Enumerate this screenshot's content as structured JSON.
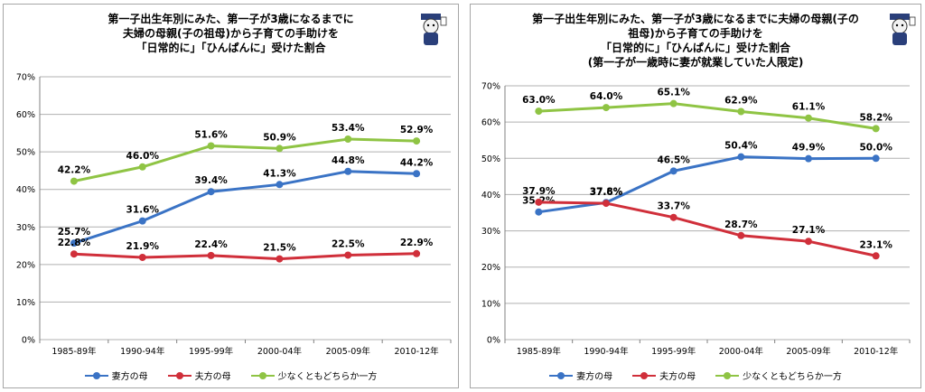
{
  "colors": {
    "wife_mother": "#3a73c5",
    "husband_mother": "#d02f3a",
    "either": "#8fc444",
    "grid": "#b0b0b0",
    "axis_text": "#000000"
  },
  "chart_data": [
    {
      "type": "line",
      "title_lines": [
        "第一子出生年別にみた、第一子が3歳になるまでに",
        "夫婦の母親(子の祖母)から子育ての手助けを",
        "「日常的に」「ひんぱんに」受けた割合"
      ],
      "categories": [
        "1985-89年",
        "1990-94年",
        "1995-99年",
        "2000-04年",
        "2005-09年",
        "2010-12年"
      ],
      "ylim": [
        0,
        70
      ],
      "yticks": [
        "0%",
        "10%",
        "20%",
        "30%",
        "40%",
        "50%",
        "60%",
        "70%"
      ],
      "grid": true,
      "legend_position": "bottom",
      "series": [
        {
          "key": "wife_mother",
          "name": "妻方の母",
          "values": [
            25.7,
            31.6,
            39.4,
            41.3,
            44.8,
            44.2
          ],
          "labels": [
            "25.7%",
            "31.6%",
            "39.4%",
            "41.3%",
            "44.8%",
            "44.2%"
          ]
        },
        {
          "key": "husband_mother",
          "name": "夫方の母",
          "values": [
            22.8,
            21.9,
            22.4,
            21.5,
            22.5,
            22.9
          ],
          "labels": [
            "22.8%",
            "21.9%",
            "22.4%",
            "21.5%",
            "22.5%",
            "22.9%"
          ]
        },
        {
          "key": "either",
          "name": "少なくともどちらか一方",
          "values": [
            42.2,
            46.0,
            51.6,
            50.9,
            53.4,
            52.9
          ],
          "labels": [
            "42.2%",
            "46.0%",
            "51.6%",
            "50.9%",
            "53.4%",
            "52.9%"
          ]
        }
      ]
    },
    {
      "type": "line",
      "title_lines": [
        "第一子出生年別にみた、第一子が3歳になるまでに夫婦の母親(子の",
        "祖母)から子育ての手助けを",
        "「日常的に」「ひんぱんに」受けた割合",
        "(第一子が一歳時に妻が就業していた人限定)"
      ],
      "categories": [
        "1985-89年",
        "1990-94年",
        "1995-99年",
        "2000-04年",
        "2005-09年",
        "2010-12年"
      ],
      "ylim": [
        0,
        70
      ],
      "yticks": [
        "0%",
        "10%",
        "20%",
        "30%",
        "40%",
        "50%",
        "60%",
        "70%"
      ],
      "grid": true,
      "legend_position": "bottom",
      "series": [
        {
          "key": "wife_mother",
          "name": "妻方の母",
          "values": [
            35.2,
            37.8,
            46.5,
            50.4,
            49.9,
            50.0
          ],
          "labels": [
            "35.2%",
            "37.8%",
            "46.5%",
            "50.4%",
            "49.9%",
            "50.0%"
          ]
        },
        {
          "key": "husband_mother",
          "name": "夫方の母",
          "values": [
            37.9,
            37.6,
            33.7,
            28.7,
            27.1,
            23.1
          ],
          "labels": [
            "37.9%",
            "37.6%",
            "33.7%",
            "28.7%",
            "27.1%",
            "23.1%"
          ]
        },
        {
          "key": "either",
          "name": "少なくともどちらか一方",
          "values": [
            63.0,
            64.0,
            65.1,
            62.9,
            61.1,
            58.2
          ],
          "labels": [
            "63.0%",
            "64.0%",
            "65.1%",
            "62.9%",
            "61.1%",
            "58.2%"
          ]
        }
      ]
    }
  ]
}
